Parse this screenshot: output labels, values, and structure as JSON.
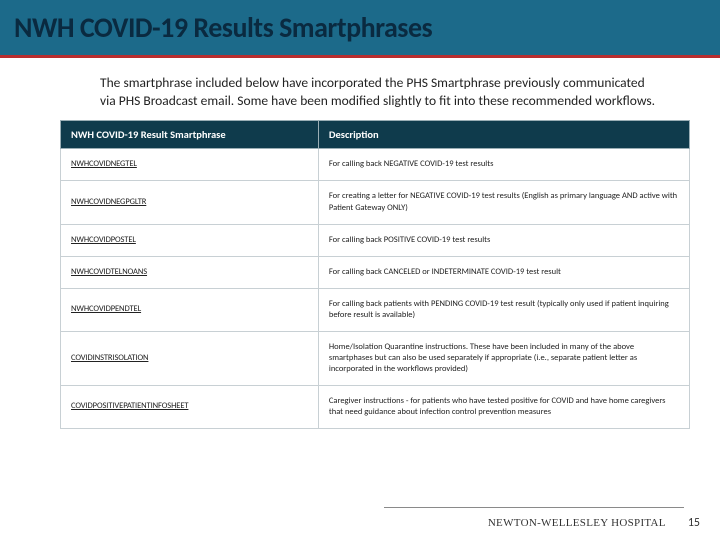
{
  "header": {
    "title": "NWH COVID-19 Results Smartphrases"
  },
  "intro": "The smartphrase included below have incorporated the PHS Smartphrase previously communicated via PHS Broadcast email. Some have been modified slightly to fit into these recommended workflows.",
  "table": {
    "columns": [
      "NWH COVID-19 Result Smartphrase",
      "Description"
    ],
    "rows": [
      {
        "name": "NWHCOVIDNEGTEL",
        "desc": "For calling back NEGATIVE COVID-19 test results"
      },
      {
        "name": "NWHCOVIDNEGPGLTR",
        "desc": "For creating a letter for NEGATIVE COVID-19 test results (English as primary language AND active with Patient Gateway ONLY)"
      },
      {
        "name": "NWHCOVIDPOSTEL",
        "desc": "For calling back POSITIVE COVID-19 test results"
      },
      {
        "name": "NWHCOVIDTELNOANS",
        "desc": "For calling back CANCELED or INDETERMINATE COVID-19 test result"
      },
      {
        "name": "NWHCOVIDPENDTEL",
        "desc": "For calling back patients with PENDING COVID-19 test result (typically only used if patient inquiring before result is available)"
      },
      {
        "name": "COVIDINSTRISOLATION",
        "desc": "Home/Isolation Quarantine instructions. These have been included in many of the above smartphases but can also be used separately if appropriate (i.e., separate patient letter as incorporated in the workflows provided)"
      },
      {
        "name": "COVIDPOSITIVEPATIENTINFOSHEET",
        "desc": "Caregiver instructions - for patients who have tested positive for COVID and have home caregivers that need guidance about infection control prevention measures"
      }
    ]
  },
  "footer": {
    "hospital": "NEWTON-WELLESLEY HOSPITAL",
    "page": "15"
  },
  "colors": {
    "header_band": "#1c6a8a",
    "header_accent": "#b82e2e",
    "title_text": "#0a2a40",
    "table_header_bg": "#0f3b4c",
    "table_border": "#c8d0d4"
  }
}
